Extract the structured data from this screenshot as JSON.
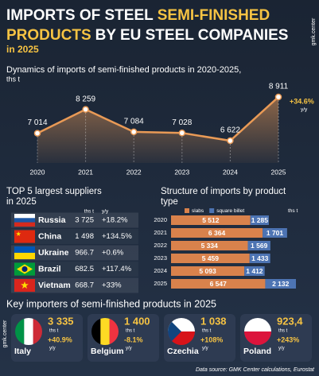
{
  "header": {
    "title_1a": "IMPORTS OF STEEL",
    "title_1b": "SEMI-FINISHED",
    "title_2a": "PRODUCTS",
    "title_2b": "BY EU STEEL COMPANIES",
    "subtitle": "in 2025",
    "logo": "gmk.center"
  },
  "chart_data": [
    {
      "type": "line",
      "title": "Dynamics of imports of semi-finished products in 2020-2025,",
      "y_label": "ths t",
      "categories": [
        "2020",
        "2021",
        "2022",
        "2023",
        "2024",
        "2025"
      ],
      "values": [
        7014,
        8259,
        7084,
        7028,
        6622,
        8911
      ],
      "value_labels": [
        "7 014",
        "8 259",
        "7 084",
        "7 028",
        "6 622",
        "8 911"
      ],
      "color": "#e99a56",
      "annotation": {
        "text": "+34.6%",
        "sub": "y/y"
      }
    },
    {
      "type": "bar",
      "orientation": "horizontal",
      "stacked": true,
      "title": [
        "Structure of imports by product",
        "type"
      ],
      "unit": "ths t",
      "categories": [
        "2020",
        "2021",
        "2022",
        "2023",
        "2024",
        "2025"
      ],
      "series": [
        {
          "name": "slabs",
          "color": "#d9824c",
          "values": [
            5512,
            6364,
            5334,
            5459,
            5093,
            6547
          ],
          "value_labels": [
            "5 512",
            "6 364",
            "5 334",
            "5 459",
            "5 093",
            "6 547"
          ]
        },
        {
          "name": "square billet",
          "color": "#4d74b3",
          "values": [
            1285,
            1701,
            1569,
            1433,
            1412,
            2132
          ],
          "value_labels": [
            "1 285",
            "1 701",
            "1 569",
            "1 433",
            "1 412",
            "2 132"
          ]
        }
      ]
    }
  ],
  "suppliers": {
    "title": [
      "TOP 5 largest suppliers",
      "in 2025"
    ],
    "columns": [
      "ths t",
      "y/y"
    ],
    "rows": [
      [
        "Russia",
        "3 725",
        "+18.2%"
      ],
      [
        "China",
        "1 498",
        "+134.5%"
      ],
      [
        "Ukraine",
        "966.7",
        "+0.6%"
      ],
      [
        "Brazil",
        "682.5",
        "+117.4%"
      ],
      [
        "Vietnam",
        "668.7",
        "+33%"
      ]
    ]
  },
  "importers": {
    "title": "Key importers of semi-finished products in 2025",
    "items": [
      {
        "country": "Italy",
        "value": "3 335",
        "unit": "ths t",
        "change": "+40.9%",
        "change_unit": "y/y"
      },
      {
        "country": "Belgium",
        "value": "1 400",
        "unit": "ths t",
        "change": "-8.1%",
        "change_unit": "y/y"
      },
      {
        "country": "Czechia",
        "value": "1 038",
        "unit": "ths t",
        "change": "+108%",
        "change_unit": "y/y"
      },
      {
        "country": "Poland",
        "value": "923,4",
        "unit": "ths t",
        "change": "+243%",
        "change_unit": "y/y"
      }
    ]
  },
  "source": "Data source: GMK Center calculations, Eurostat"
}
